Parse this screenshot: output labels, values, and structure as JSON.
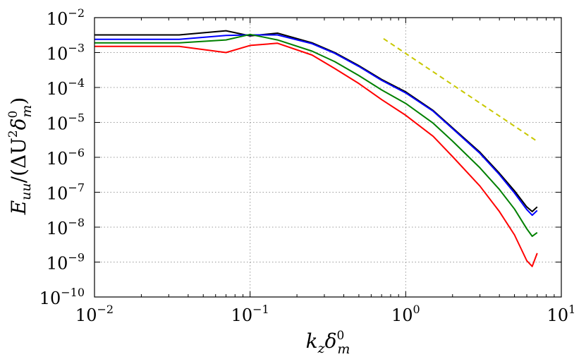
{
  "chart_data": {
    "type": "line",
    "title": "",
    "xlabel": "k_z δ_m^0",
    "ylabel": "E_uu/(ΔU²δ_m^0)",
    "xlabel_parts": {
      "main": "k",
      "sub1": "z",
      "delta": "δ",
      "sup": "0",
      "sub2": "m"
    },
    "ylabel_parts": {
      "main": "E",
      "sub1": "uu",
      "mid": "/(ΔU",
      "sq": "2",
      "delta": "δ",
      "sup": "0",
      "sub2": "m",
      "close": ")"
    },
    "xscale": "log",
    "yscale": "log",
    "xlim": [
      0.01,
      10
    ],
    "ylim": [
      1e-10,
      0.01
    ],
    "grid": true,
    "x_ticks": [
      {
        "base": "10",
        "exp": "−2",
        "value": 0.01
      },
      {
        "base": "10",
        "exp": "−1",
        "value": 0.1
      },
      {
        "base": "10",
        "exp": "0",
        "value": 1
      },
      {
        "base": "10",
        "exp": "1",
        "value": 10
      }
    ],
    "y_ticks": [
      {
        "base": "10",
        "exp": "−10",
        "value": 1e-10
      },
      {
        "base": "10",
        "exp": "−9",
        "value": 1e-09
      },
      {
        "base": "10",
        "exp": "−8",
        "value": 1e-08
      },
      {
        "base": "10",
        "exp": "−7",
        "value": 1e-07
      },
      {
        "base": "10",
        "exp": "−6",
        "value": 1e-06
      },
      {
        "base": "10",
        "exp": "−5",
        "value": 1e-05
      },
      {
        "base": "10",
        "exp": "−4",
        "value": 0.0001
      },
      {
        "base": "10",
        "exp": "−3",
        "value": 0.001
      },
      {
        "base": "10",
        "exp": "−2",
        "value": 0.01
      }
    ],
    "series": [
      {
        "name": "black",
        "color": "#000000",
        "x": [
          0.01,
          0.035,
          0.07,
          0.1,
          0.15,
          0.25,
          0.35,
          0.5,
          0.7,
          1.0,
          1.5,
          2.0,
          3.0,
          4.0,
          5.0,
          6.0,
          6.5,
          7.0
        ],
        "y": [
          0.0032,
          0.0032,
          0.0042,
          0.003,
          0.0036,
          0.0019,
          0.001,
          0.00042,
          0.00017,
          7.5e-05,
          2.2e-05,
          7e-06,
          1.4e-06,
          3.5e-07,
          1.1e-07,
          3.8e-08,
          2.8e-08,
          3.8e-08
        ]
      },
      {
        "name": "blue",
        "color": "#0000ff",
        "x": [
          0.01,
          0.035,
          0.07,
          0.1,
          0.15,
          0.25,
          0.35,
          0.5,
          0.7,
          1.0,
          1.5,
          2.0,
          3.0,
          4.0,
          5.0,
          6.0,
          6.5,
          7.0
        ],
        "y": [
          0.0024,
          0.0024,
          0.0031,
          0.0032,
          0.0032,
          0.0018,
          0.00095,
          0.0004,
          0.00016,
          7e-05,
          2.1e-05,
          6.6e-06,
          1.3e-06,
          3.2e-07,
          9.5e-08,
          3.2e-08,
          2.2e-08,
          3e-08
        ]
      },
      {
        "name": "green",
        "color": "#008000",
        "x": [
          0.01,
          0.035,
          0.07,
          0.1,
          0.15,
          0.25,
          0.35,
          0.5,
          0.7,
          1.0,
          1.5,
          2.0,
          3.0,
          4.0,
          5.0,
          6.0,
          6.5,
          7.0
        ],
        "y": [
          0.0019,
          0.0019,
          0.0023,
          0.0033,
          0.0023,
          0.0011,
          0.00055,
          0.00022,
          8.5e-05,
          3.5e-05,
          9.5e-06,
          2.9e-06,
          5e-07,
          1.2e-07,
          3.3e-08,
          9e-09,
          5.5e-09,
          7e-09
        ]
      },
      {
        "name": "red",
        "color": "#ff0000",
        "x": [
          0.01,
          0.035,
          0.07,
          0.1,
          0.15,
          0.25,
          0.35,
          0.5,
          0.7,
          1.0,
          1.5,
          2.0,
          3.0,
          4.0,
          5.0,
          6.0,
          6.5,
          7.0
        ],
        "y": [
          0.0015,
          0.0015,
          0.001,
          0.0016,
          0.00185,
          0.00085,
          0.00035,
          0.00013,
          4.5e-05,
          1.6e-05,
          4e-06,
          1.05e-06,
          1.5e-07,
          2.8e-08,
          6e-09,
          1.1e-09,
          7.5e-10,
          1.8e-09
        ]
      },
      {
        "name": "reference slope",
        "color": "#c8c800",
        "dashed": true,
        "x": [
          0.72,
          6.9
        ],
        "y": [
          0.0025,
          3e-06
        ]
      }
    ]
  }
}
